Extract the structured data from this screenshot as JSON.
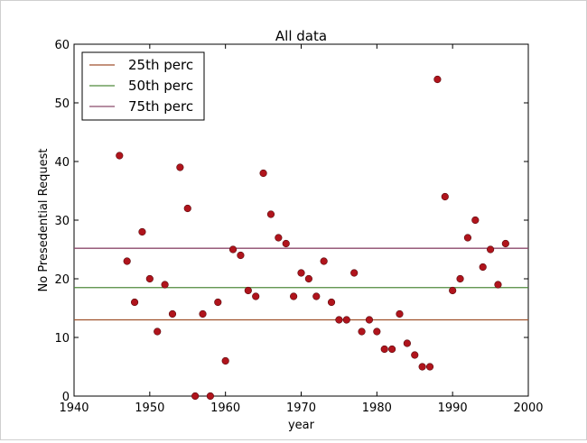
{
  "chart_data": {
    "type": "scatter",
    "title": "All data",
    "xlabel": "year",
    "ylabel": "No Presedential Request",
    "xlim": [
      1940,
      2000
    ],
    "ylim": [
      0,
      60
    ],
    "xticks": [
      "1940",
      "1950",
      "1960",
      "1970",
      "1980",
      "1990",
      "2000"
    ],
    "yticks": [
      "0",
      "10",
      "20",
      "30",
      "40",
      "50",
      "60"
    ],
    "grid": false,
    "legend_position": "top-left",
    "points": {
      "name": "",
      "color": "#b0141c",
      "x": [
        1946,
        1947,
        1948,
        1949,
        1950,
        1951,
        1952,
        1953,
        1954,
        1955,
        1956,
        1957,
        1958,
        1959,
        1960,
        1961,
        1962,
        1963,
        1964,
        1965,
        1966,
        1967,
        1968,
        1969,
        1970,
        1971,
        1972,
        1973,
        1974,
        1975,
        1976,
        1977,
        1978,
        1979,
        1980,
        1981,
        1982,
        1983,
        1984,
        1985,
        1986,
        1987,
        1988,
        1989,
        1990,
        1991,
        1992,
        1993,
        1994,
        1995,
        1996,
        1997
      ],
      "y": [
        41,
        23,
        16,
        28,
        20,
        11,
        19,
        14,
        39,
        32,
        0,
        14,
        0,
        16,
        6,
        25,
        24,
        18,
        17,
        38,
        31,
        27,
        26,
        17,
        21,
        20,
        17,
        23,
        16,
        13,
        13,
        21,
        11,
        13,
        11,
        8,
        8,
        14,
        9,
        7,
        5,
        5,
        54,
        34,
        18,
        20,
        27,
        30,
        22,
        25,
        19,
        26
      ]
    },
    "series": [
      {
        "name": "25th perc",
        "value": 13.0,
        "color": "#a0522d"
      },
      {
        "name": "50th perc",
        "value": 18.5,
        "color": "#4f8a3c"
      },
      {
        "name": "75th perc",
        "value": 25.2,
        "color": "#8b4a6b"
      }
    ]
  }
}
